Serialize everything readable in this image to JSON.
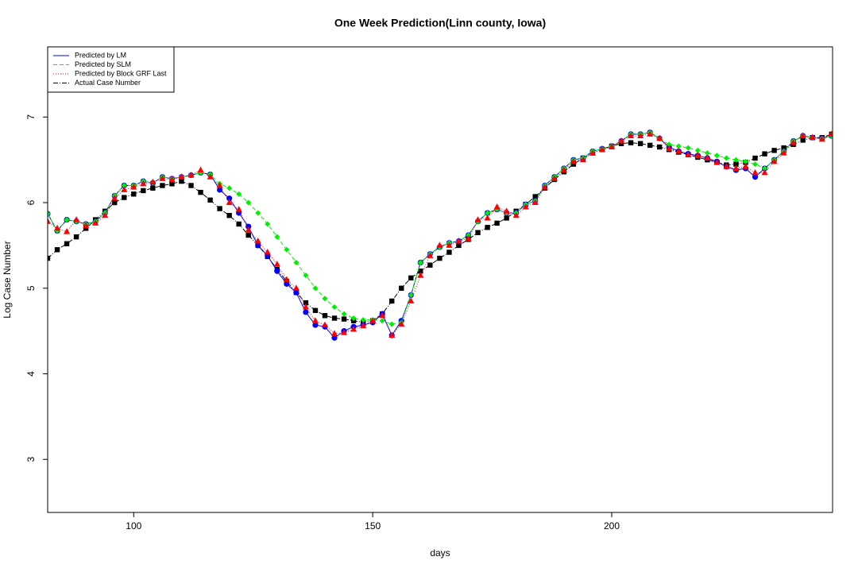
{
  "chart_data": {
    "type": "line",
    "title": "One Week Prediction(Linn county, Iowa)",
    "x_label": "days",
    "y_label": "Log Case Number",
    "xlim": [
      82,
      246.2
    ],
    "ylim": [
      2.38,
      7.82
    ],
    "xticks": [
      100,
      150,
      200
    ],
    "yticks": [
      3,
      4,
      5,
      6,
      7
    ],
    "legend": "top-left",
    "x": [
      82,
      84,
      86,
      88,
      90,
      92,
      94,
      96,
      98,
      100,
      102,
      104,
      106,
      108,
      110,
      112,
      114,
      116,
      118,
      120,
      122,
      124,
      126,
      128,
      130,
      132,
      134,
      136,
      138,
      140,
      142,
      144,
      146,
      148,
      150,
      152,
      154,
      156,
      158,
      160,
      162,
      164,
      166,
      168,
      170,
      172,
      174,
      176,
      178,
      180,
      182,
      184,
      186,
      188,
      190,
      192,
      194,
      196,
      198,
      200,
      202,
      204,
      206,
      208,
      210,
      212,
      214,
      216,
      218,
      220,
      222,
      224,
      226,
      228,
      230,
      232,
      234,
      236,
      238,
      240,
      242,
      244,
      246
    ],
    "series": [
      {
        "name": "Predicted by LM",
        "color": "#0000ff",
        "linestyle": "solid",
        "marker": "circle",
        "values": [
          5.87,
          5.67,
          5.8,
          5.78,
          5.75,
          5.78,
          5.88,
          6.08,
          6.2,
          6.2,
          6.25,
          6.23,
          6.3,
          6.28,
          6.3,
          6.32,
          6.35,
          6.33,
          6.15,
          6.05,
          5.88,
          5.72,
          5.5,
          5.38,
          5.2,
          5.05,
          4.95,
          4.72,
          4.57,
          4.55,
          4.42,
          4.5,
          4.55,
          4.57,
          4.6,
          4.7,
          4.45,
          4.62,
          4.92,
          5.3,
          5.4,
          5.48,
          5.53,
          5.55,
          5.62,
          5.78,
          5.88,
          5.92,
          5.88,
          5.88,
          5.98,
          6.02,
          6.2,
          6.3,
          6.4,
          6.5,
          6.52,
          6.6,
          6.63,
          6.66,
          6.72,
          6.8,
          6.8,
          6.82,
          6.75,
          6.65,
          6.6,
          6.57,
          6.55,
          6.52,
          6.48,
          6.42,
          6.38,
          6.4,
          6.3,
          6.4,
          6.5,
          6.6,
          6.72,
          6.78,
          6.76,
          6.75,
          6.78
        ]
      },
      {
        "name": "Predicted by SLM",
        "color": "#00ee00",
        "linestyle": "dashed",
        "marker": "diamond",
        "values": [
          5.87,
          5.67,
          5.8,
          5.78,
          5.75,
          5.78,
          5.88,
          6.08,
          6.2,
          6.2,
          6.25,
          6.23,
          6.3,
          6.28,
          6.3,
          6.32,
          6.35,
          6.33,
          6.22,
          6.17,
          6.1,
          6.0,
          5.88,
          5.75,
          5.6,
          5.45,
          5.3,
          5.15,
          5.0,
          4.88,
          4.78,
          4.7,
          4.65,
          4.63,
          4.63,
          4.62,
          4.58,
          4.6,
          4.92,
          5.3,
          5.4,
          5.48,
          5.53,
          5.55,
          5.62,
          5.78,
          5.88,
          5.92,
          5.88,
          5.88,
          5.98,
          6.02,
          6.2,
          6.3,
          6.4,
          6.5,
          6.52,
          6.6,
          6.63,
          6.66,
          6.72,
          6.8,
          6.8,
          6.82,
          6.75,
          6.68,
          6.66,
          6.64,
          6.61,
          6.58,
          6.55,
          6.52,
          6.5,
          6.48,
          6.45,
          6.4,
          6.5,
          6.6,
          6.72,
          6.78,
          6.76,
          6.75,
          6.78
        ]
      },
      {
        "name": "Predicted by Block GRF Last",
        "color": "#ff0000",
        "linestyle": "dotted",
        "marker": "triangle",
        "values": [
          5.78,
          5.7,
          5.66,
          5.8,
          5.73,
          5.76,
          5.85,
          6.05,
          6.15,
          6.18,
          6.22,
          6.24,
          6.28,
          6.27,
          6.3,
          6.32,
          6.38,
          6.3,
          6.2,
          6.0,
          5.92,
          5.68,
          5.55,
          5.42,
          5.28,
          5.1,
          5.0,
          4.78,
          4.62,
          4.57,
          4.47,
          4.48,
          4.52,
          4.56,
          4.62,
          4.68,
          4.45,
          4.58,
          4.85,
          5.15,
          5.38,
          5.5,
          5.5,
          5.55,
          5.58,
          5.8,
          5.82,
          5.95,
          5.9,
          5.85,
          5.95,
          6.0,
          6.18,
          6.28,
          6.38,
          6.48,
          6.5,
          6.58,
          6.62,
          6.65,
          6.72,
          6.78,
          6.78,
          6.8,
          6.75,
          6.63,
          6.6,
          6.56,
          6.55,
          6.52,
          6.47,
          6.42,
          6.4,
          6.42,
          6.35,
          6.35,
          6.48,
          6.58,
          6.7,
          6.78,
          6.76,
          6.74,
          6.8
        ]
      },
      {
        "name": "Actual Case Number",
        "color": "#000000",
        "linestyle": "dashdot",
        "marker": "square",
        "values": [
          5.35,
          5.45,
          5.52,
          5.6,
          5.7,
          5.8,
          5.9,
          6.0,
          6.06,
          6.1,
          6.14,
          6.17,
          6.2,
          6.22,
          6.25,
          6.2,
          6.12,
          6.03,
          5.93,
          5.85,
          5.75,
          5.62,
          5.5,
          5.37,
          5.22,
          5.08,
          4.95,
          4.83,
          4.74,
          4.68,
          4.65,
          4.64,
          4.62,
          4.6,
          4.62,
          4.7,
          4.85,
          5.0,
          5.12,
          5.2,
          5.27,
          5.35,
          5.42,
          5.5,
          5.57,
          5.65,
          5.71,
          5.76,
          5.82,
          5.9,
          5.98,
          6.07,
          6.17,
          6.27,
          6.36,
          6.45,
          6.52,
          6.58,
          6.62,
          6.66,
          6.69,
          6.7,
          6.69,
          6.67,
          6.65,
          6.62,
          6.59,
          6.56,
          6.53,
          6.5,
          6.47,
          6.44,
          6.45,
          6.47,
          6.52,
          6.57,
          6.61,
          6.64,
          6.68,
          6.73,
          6.76,
          6.76,
          6.8
        ]
      }
    ]
  }
}
